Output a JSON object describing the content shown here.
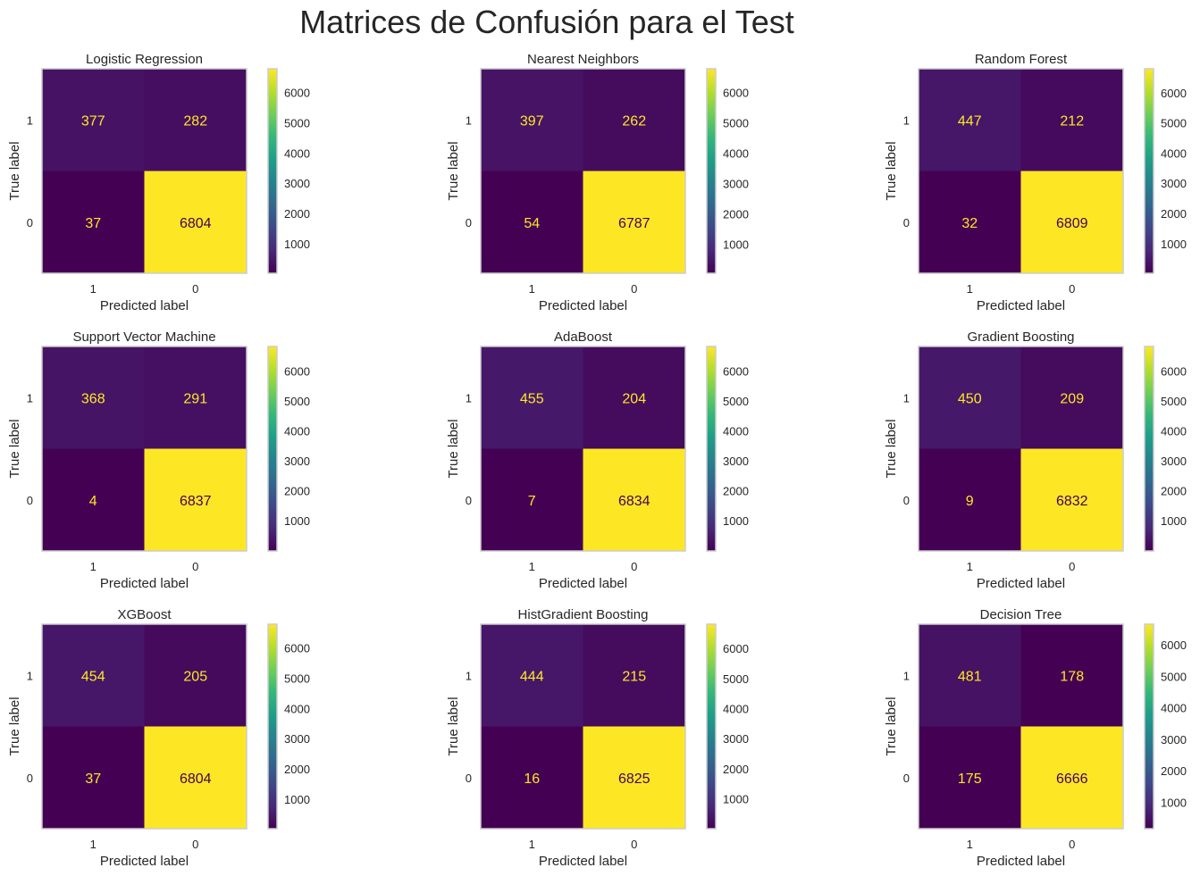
{
  "figure": {
    "suptitle": "Matrices de Confusión para el Test"
  },
  "colors": {
    "viridis_stops": [
      "#440154",
      "#482878",
      "#3e4989",
      "#31688e",
      "#26828e",
      "#1f9e89",
      "#35b779",
      "#6ece58",
      "#b5de2b",
      "#fde725"
    ],
    "text_on_dark": "#fde725",
    "text_on_light": "#440154",
    "frame": "#cccccc",
    "label_text": "#262626"
  },
  "chart_data": [
    {
      "type": "heatmap",
      "title": "Logistic Regression",
      "xlabel": "Predicted label",
      "ylabel": "True label",
      "x_categories": [
        "1",
        "0"
      ],
      "y_categories": [
        "1",
        "0"
      ],
      "values": [
        [
          377,
          282
        ],
        [
          37,
          6804
        ]
      ],
      "colorbar": {
        "range": [
          37,
          6804
        ],
        "ticks": [
          1000,
          2000,
          3000,
          4000,
          5000,
          6000
        ],
        "colormap": "viridis"
      },
      "grid": false
    },
    {
      "type": "heatmap",
      "title": "Nearest Neighbors",
      "xlabel": "Predicted label",
      "ylabel": "True label",
      "x_categories": [
        "1",
        "0"
      ],
      "y_categories": [
        "1",
        "0"
      ],
      "values": [
        [
          397,
          262
        ],
        [
          54,
          6787
        ]
      ],
      "colorbar": {
        "range": [
          54,
          6787
        ],
        "ticks": [
          1000,
          2000,
          3000,
          4000,
          5000,
          6000
        ],
        "colormap": "viridis"
      },
      "grid": false
    },
    {
      "type": "heatmap",
      "title": "Random Forest",
      "xlabel": "Predicted label",
      "ylabel": "True label",
      "x_categories": [
        "1",
        "0"
      ],
      "y_categories": [
        "1",
        "0"
      ],
      "values": [
        [
          447,
          212
        ],
        [
          32,
          6809
        ]
      ],
      "colorbar": {
        "range": [
          32,
          6809
        ],
        "ticks": [
          1000,
          2000,
          3000,
          4000,
          5000,
          6000
        ],
        "colormap": "viridis"
      },
      "grid": false
    },
    {
      "type": "heatmap",
      "title": "Support Vector Machine",
      "xlabel": "Predicted label",
      "ylabel": "True label",
      "x_categories": [
        "1",
        "0"
      ],
      "y_categories": [
        "1",
        "0"
      ],
      "values": [
        [
          368,
          291
        ],
        [
          4,
          6837
        ]
      ],
      "colorbar": {
        "range": [
          4,
          6837
        ],
        "ticks": [
          1000,
          2000,
          3000,
          4000,
          5000,
          6000
        ],
        "colormap": "viridis"
      },
      "grid": false
    },
    {
      "type": "heatmap",
      "title": "AdaBoost",
      "xlabel": "Predicted label",
      "ylabel": "True label",
      "x_categories": [
        "1",
        "0"
      ],
      "y_categories": [
        "1",
        "0"
      ],
      "values": [
        [
          455,
          204
        ],
        [
          7,
          6834
        ]
      ],
      "colorbar": {
        "range": [
          7,
          6834
        ],
        "ticks": [
          1000,
          2000,
          3000,
          4000,
          5000,
          6000
        ],
        "colormap": "viridis"
      },
      "grid": false
    },
    {
      "type": "heatmap",
      "title": "Gradient Boosting",
      "xlabel": "Predicted label",
      "ylabel": "True label",
      "x_categories": [
        "1",
        "0"
      ],
      "y_categories": [
        "1",
        "0"
      ],
      "values": [
        [
          450,
          209
        ],
        [
          9,
          6832
        ]
      ],
      "colorbar": {
        "range": [
          9,
          6832
        ],
        "ticks": [
          1000,
          2000,
          3000,
          4000,
          5000,
          6000
        ],
        "colormap": "viridis"
      },
      "grid": false
    },
    {
      "type": "heatmap",
      "title": "XGBoost",
      "xlabel": "Predicted label",
      "ylabel": "True label",
      "x_categories": [
        "1",
        "0"
      ],
      "y_categories": [
        "1",
        "0"
      ],
      "values": [
        [
          454,
          205
        ],
        [
          37,
          6804
        ]
      ],
      "colorbar": {
        "range": [
          37,
          6804
        ],
        "ticks": [
          1000,
          2000,
          3000,
          4000,
          5000,
          6000
        ],
        "colormap": "viridis"
      },
      "grid": false
    },
    {
      "type": "heatmap",
      "title": "HistGradient Boosting",
      "xlabel": "Predicted label",
      "ylabel": "True label",
      "x_categories": [
        "1",
        "0"
      ],
      "y_categories": [
        "1",
        "0"
      ],
      "values": [
        [
          444,
          215
        ],
        [
          16,
          6825
        ]
      ],
      "colorbar": {
        "range": [
          16,
          6825
        ],
        "ticks": [
          1000,
          2000,
          3000,
          4000,
          5000,
          6000
        ],
        "colormap": "viridis"
      },
      "grid": false
    },
    {
      "type": "heatmap",
      "title": "Decision Tree",
      "xlabel": "Predicted label",
      "ylabel": "True label",
      "x_categories": [
        "1",
        "0"
      ],
      "y_categories": [
        "1",
        "0"
      ],
      "values": [
        [
          481,
          178
        ],
        [
          175,
          6666
        ]
      ],
      "colorbar": {
        "range": [
          175,
          6666
        ],
        "ticks": [
          1000,
          2000,
          3000,
          4000,
          5000,
          6000
        ],
        "colormap": "viridis"
      },
      "grid": false
    }
  ]
}
